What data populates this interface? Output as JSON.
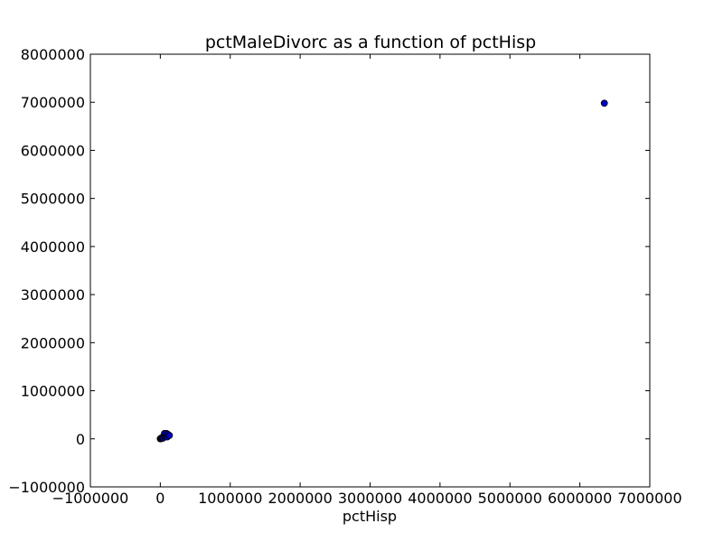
{
  "chart_data": {
    "type": "scatter",
    "title": "pctMaleDivorc as a function of pctHisp",
    "xlabel": "pctHisp",
    "ylabel": "",
    "xlim": [
      -1000000,
      7000000
    ],
    "ylim": [
      -1000000,
      8000000
    ],
    "xticks": [
      -1000000,
      0,
      1000000,
      2000000,
      3000000,
      4000000,
      5000000,
      6000000,
      7000000
    ],
    "yticks": [
      -1000000,
      0,
      1000000,
      2000000,
      3000000,
      4000000,
      5000000,
      6000000,
      7000000,
      8000000
    ],
    "xtick_labels": [
      "−1000000",
      "0",
      "1000000",
      "2000000",
      "3000000",
      "4000000",
      "5000000",
      "6000000",
      "7000000"
    ],
    "ytick_labels": [
      "−1000000",
      "0",
      "1000000",
      "2000000",
      "3000000",
      "4000000",
      "5000000",
      "6000000",
      "7000000",
      "8000000"
    ],
    "grid": false,
    "marker_color": "#0000bf",
    "points": [
      {
        "x": 0,
        "y": 0
      },
      {
        "x": 5000,
        "y": 8000
      },
      {
        "x": 10000,
        "y": 3000
      },
      {
        "x": 15000,
        "y": 12000
      },
      {
        "x": 20000,
        "y": 20000
      },
      {
        "x": 30000,
        "y": 30000
      },
      {
        "x": 40000,
        "y": 15000
      },
      {
        "x": 50000,
        "y": 60000
      },
      {
        "x": 60000,
        "y": 110000
      },
      {
        "x": 70000,
        "y": 50000
      },
      {
        "x": 80000,
        "y": 80000
      },
      {
        "x": 90000,
        "y": 110000
      },
      {
        "x": 100000,
        "y": 40000
      },
      {
        "x": 110000,
        "y": 90000
      },
      {
        "x": 130000,
        "y": 70000
      },
      {
        "x": 6350000,
        "y": 6980000
      }
    ]
  }
}
